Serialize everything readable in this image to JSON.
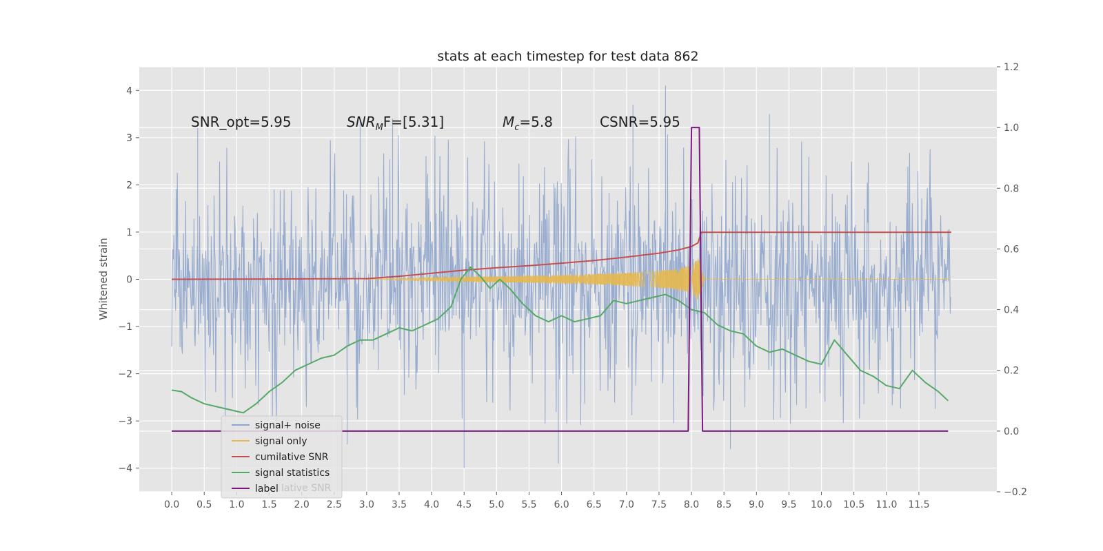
{
  "chart_data": {
    "type": "line",
    "title": "stats at each timestep for test data 862",
    "ylabel_left": "Whitened strain",
    "ylabel_right": "",
    "xlim": [
      -0.5,
      12.7
    ],
    "ylim_left": [
      -4.5,
      4.5
    ],
    "ylim_right": [
      -0.2,
      1.2
    ],
    "x_ticks": [
      "0.0",
      "0.5",
      "1.0",
      "1.5",
      "2.0",
      "2.5",
      "3.0",
      "3.5",
      "4.0",
      "4.5",
      "5.0",
      "5.5",
      "6.0",
      "6.5",
      "7.0",
      "7.5",
      "8.0",
      "8.5",
      "9.0",
      "9.5",
      "10.0",
      "10.5",
      "11.0",
      "11.5"
    ],
    "y_ticks_left": [
      "4",
      "3",
      "2",
      "1",
      "0",
      "−1",
      "−2",
      "−3",
      "−4"
    ],
    "y_ticks_right": [
      "1.2",
      "1.0",
      "0.8",
      "0.6",
      "0.4",
      "0.2",
      "0.0",
      "−0.2"
    ],
    "grid": true,
    "background": "#e5e5e5",
    "annotations": [
      {
        "text": "SNR_opt=5.95",
        "x": 0.2,
        "y": 3.3
      },
      {
        "text": "SNR_MF=[5.31]",
        "x": 2.6,
        "y": 3.3
      },
      {
        "text": "M_c=5.8",
        "x": 5.0,
        "y": 3.3
      },
      {
        "text": "CSNR=5.95",
        "x": 6.5,
        "y": 3.3
      }
    ],
    "ann_texts": {
      "snr_opt": "SNR_opt=5.95",
      "snr_mf_head": "SNR",
      "snr_mf_sub": "M",
      "snr_mf_tail": "F=[5.31]",
      "mc_head": "M",
      "mc_sub": "c",
      "mc_tail": "=5.8",
      "csnr": "CSNR=5.95"
    },
    "series": [
      {
        "name": "signal+ noise",
        "axis": "left",
        "color": "#8fa5cc",
        "description": "noise band",
        "envelope": [
          -2.0,
          2.0
        ],
        "peaks": [
          [
            0.4,
            3.2
          ],
          [
            2.9,
            3.4
          ],
          [
            3.4,
            3.4
          ],
          [
            6.0,
            1.6
          ],
          [
            7.1,
            3.7
          ],
          [
            7.6,
            4.1
          ],
          [
            9.2,
            3.5
          ],
          [
            4.5,
            -4.0
          ],
          [
            5.95,
            -3.9
          ],
          [
            8.6,
            -3.6
          ],
          [
            2.7,
            -3.5
          ]
        ]
      },
      {
        "name": "signal only",
        "axis": "left",
        "color": "#e6b84f",
        "x": [
          3.0,
          4.0,
          5.0,
          6.0,
          7.0,
          7.5,
          7.8,
          8.0,
          8.1,
          8.2
        ],
        "amp": [
          0.0,
          0.04,
          0.06,
          0.09,
          0.14,
          0.18,
          0.23,
          0.3,
          0.45,
          0.0
        ]
      },
      {
        "name": "cumilative SNR",
        "axis": "right",
        "color": "#c44e52",
        "x": [
          0.0,
          3.0,
          3.5,
          4.0,
          4.5,
          5.0,
          5.5,
          6.0,
          6.5,
          7.0,
          7.5,
          7.8,
          8.0,
          8.1,
          8.15,
          12.0
        ],
        "values": [
          0.5,
          0.502,
          0.51,
          0.52,
          0.53,
          0.538,
          0.545,
          0.553,
          0.562,
          0.573,
          0.586,
          0.597,
          0.608,
          0.62,
          0.655,
          0.655
        ]
      },
      {
        "name": "signal statistics",
        "axis": "right",
        "color": "#55a868",
        "x": [
          0.0,
          0.15,
          0.3,
          0.5,
          0.7,
          0.9,
          1.1,
          1.3,
          1.5,
          1.7,
          1.9,
          2.1,
          2.3,
          2.5,
          2.7,
          2.9,
          3.1,
          3.3,
          3.5,
          3.7,
          3.9,
          4.1,
          4.3,
          4.45,
          4.6,
          4.75,
          4.9,
          5.05,
          5.2,
          5.4,
          5.6,
          5.8,
          6.0,
          6.2,
          6.4,
          6.6,
          6.8,
          7.0,
          7.2,
          7.4,
          7.6,
          7.8,
          8.0,
          8.2,
          8.4,
          8.6,
          8.8,
          9.0,
          9.2,
          9.4,
          9.6,
          9.8,
          10.0,
          10.2,
          10.4,
          10.6,
          10.8,
          11.0,
          11.2,
          11.4,
          11.6,
          11.8,
          11.95
        ],
        "values": [
          0.135,
          0.13,
          0.11,
          0.09,
          0.08,
          0.07,
          0.06,
          0.09,
          0.13,
          0.16,
          0.2,
          0.22,
          0.24,
          0.25,
          0.28,
          0.3,
          0.3,
          0.32,
          0.34,
          0.33,
          0.35,
          0.37,
          0.41,
          0.5,
          0.54,
          0.51,
          0.47,
          0.5,
          0.47,
          0.42,
          0.38,
          0.36,
          0.38,
          0.36,
          0.37,
          0.38,
          0.43,
          0.42,
          0.43,
          0.44,
          0.45,
          0.43,
          0.4,
          0.39,
          0.35,
          0.33,
          0.32,
          0.28,
          0.26,
          0.27,
          0.25,
          0.23,
          0.22,
          0.3,
          0.25,
          0.2,
          0.18,
          0.15,
          0.14,
          0.2,
          0.16,
          0.13,
          0.1
        ]
      },
      {
        "name": "label",
        "axis": "right",
        "color": "#7d1a7d",
        "x": [
          0.0,
          7.95,
          8.0,
          8.12,
          8.17,
          11.95
        ],
        "values": [
          0.0,
          0.0,
          1.0,
          1.0,
          0.0,
          0.0
        ]
      }
    ],
    "legend": {
      "placement": "lower-left",
      "entries": [
        "signal+ noise",
        "signal only",
        "cumilative SNR",
        "signal statistics",
        "label"
      ],
      "ghost_text": "lative SNR"
    }
  }
}
